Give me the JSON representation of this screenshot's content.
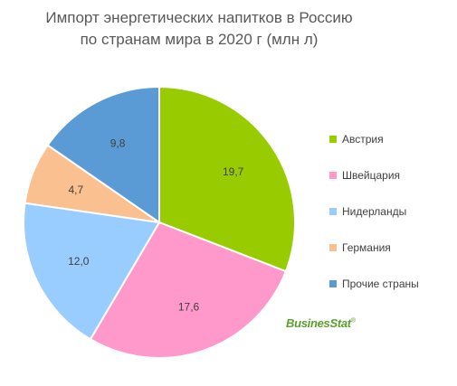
{
  "chart_data": {
    "type": "pie",
    "title_line1": "Импорт энергетических напитков в Россию",
    "title_line2": "по странам мира в 2020 г (млн л)",
    "slices": [
      {
        "name": "Австрия",
        "value": 19.7,
        "label": "19,7",
        "color": "#99cc00"
      },
      {
        "name": "Швейцария",
        "value": 17.6,
        "label": "17,6",
        "color": "#ff99cc"
      },
      {
        "name": "Нидерланды",
        "value": 12.0,
        "label": "12,0",
        "color": "#99ccff"
      },
      {
        "name": "Германия",
        "value": 4.7,
        "label": "4,7",
        "color": "#fac090"
      },
      {
        "name": "Прочие страны",
        "value": 9.8,
        "label": "9,8",
        "color": "#5b9bd5"
      }
    ],
    "legend_placement": "right"
  },
  "logo": {
    "text": "BusinesStat",
    "mark": "®"
  }
}
